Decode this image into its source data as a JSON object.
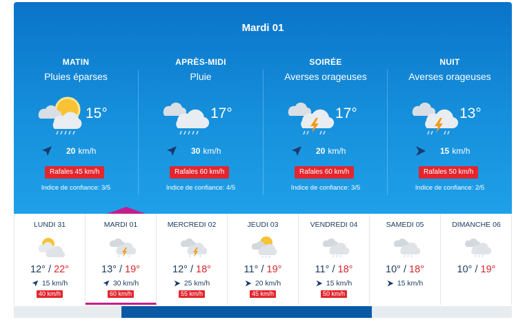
{
  "hero": {
    "title": "Mardi 01",
    "periods": [
      {
        "name": "MATIN",
        "condition": "Pluies éparses",
        "icon": "sun-cloud-rain-icon",
        "temp": "15°",
        "wind_speed": "20",
        "wind_unit": "km/h",
        "wind_dir": "north-east",
        "gust": "Rafales 45 km/h",
        "confidence": "Indice de confiance: 3/5"
      },
      {
        "name": "APRÈS-MIDI",
        "condition": "Pluie",
        "icon": "cloud-rain-icon",
        "temp": "17°",
        "wind_speed": "30",
        "wind_unit": "km/h",
        "wind_dir": "north-east",
        "gust": "Rafales 60 km/h",
        "confidence": "Indice de confiance: 4/5"
      },
      {
        "name": "SOIRÉE",
        "condition": "Averses orageuses",
        "icon": "cloud-lightning-rain-icon",
        "temp": "17°",
        "wind_speed": "20",
        "wind_unit": "km/h",
        "wind_dir": "north-east",
        "gust": "Rafales 60 km/h",
        "confidence": "Indice de confiance: 3/5"
      },
      {
        "name": "NUIT",
        "condition": "Averses orageuses",
        "icon": "cloud-lightning-rain-icon",
        "temp": "13°",
        "wind_speed": "15",
        "wind_unit": "km/h",
        "wind_dir": "east",
        "gust": "Rafales 50 km/h",
        "confidence": "Indice de confiance: 2/5"
      }
    ]
  },
  "days": [
    {
      "name": "LUNDI 31",
      "icon": "sun-cloud-icon",
      "min": "12°",
      "max": "22°",
      "wind": "15 km/h",
      "wind_dir": "north-east",
      "gust": "40 km/h",
      "selected": false
    },
    {
      "name": "MARDI 01",
      "icon": "cloud-lightning-rain-icon",
      "min": "13°",
      "max": "19°",
      "wind": "30 km/h",
      "wind_dir": "north-east",
      "gust": "60 km/h",
      "selected": true
    },
    {
      "name": "MERCREDI 02",
      "icon": "cloud-lightning-rain-icon",
      "min": "12°",
      "max": "18°",
      "wind": "25 km/h",
      "wind_dir": "east",
      "gust": "55 km/h",
      "selected": false
    },
    {
      "name": "JEUDI 03",
      "icon": "sun-cloud-rain-icon",
      "min": "11°",
      "max": "19°",
      "wind": "20 km/h",
      "wind_dir": "east",
      "gust": "45 km/h",
      "selected": false
    },
    {
      "name": "VENDREDI 04",
      "icon": "cloud-rain-icon",
      "min": "11°",
      "max": "18°",
      "wind": "15 km/h",
      "wind_dir": "east",
      "gust": "50 km/h",
      "selected": false
    },
    {
      "name": "SAMEDI 05",
      "icon": "cloud-rain-icon",
      "min": "10°",
      "max": "18°",
      "wind": "15 km/h",
      "wind_dir": "east",
      "gust": "",
      "selected": false
    },
    {
      "name": "DIMANCHE 06",
      "icon": "cloud-rain-icon",
      "min": "10°",
      "max": "19°",
      "wind": "",
      "wind_dir": "",
      "gust": "",
      "selected": false
    }
  ],
  "colors": {
    "hero_top": "#0a74c9",
    "hero_bottom": "#1fa0e8",
    "gust_red": "#e3262e",
    "max_red": "#d8262c",
    "accent_magenta": "#c41c8e",
    "scroll_blue": "#0a59a5"
  }
}
